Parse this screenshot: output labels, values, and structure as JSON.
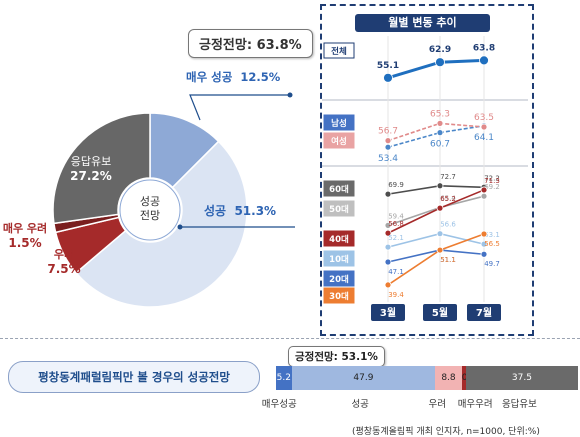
{
  "pie": {
    "type": "pie",
    "center_label": [
      "성공",
      "전망"
    ],
    "callout": "긍정전망: 63.8%",
    "slices": [
      {
        "name": "매우 성공",
        "value": 12.5,
        "display": "12.5%",
        "color": "#8ea9d6",
        "text_color": "#2e64b3"
      },
      {
        "name": "성공",
        "value": 51.3,
        "display": "51.3%",
        "color": "#dbe4f3",
        "text_color": "#2e64b3"
      },
      {
        "name": "우려",
        "value": 7.5,
        "display": "7.5%",
        "color": "#a52a2a",
        "text_color": "#a52a2a"
      },
      {
        "name": "매우 우려",
        "value": 1.5,
        "display": "1.5%",
        "color": "#7a1f1f",
        "text_color": "#a52a2a"
      },
      {
        "name": "응답유보",
        "value": 27.2,
        "display": "27.2%",
        "color": "#676767",
        "text_color": "#ffffff"
      }
    ]
  },
  "chart_data": {
    "type": "line",
    "title": "월별 변동 추이",
    "categories": [
      "3월",
      "5월",
      "7월"
    ],
    "series": [
      {
        "name": "전체",
        "values": [
          55.1,
          62.9,
          63.8
        ],
        "color": "#1f6fbf"
      },
      {
        "name": "남성",
        "values": [
          53.4,
          60.7,
          64.1
        ],
        "color": "#4a86c8"
      },
      {
        "name": "여성",
        "values": [
          56.7,
          65.3,
          63.5
        ],
        "color": "#e08a8a"
      },
      {
        "name": "60대",
        "values": [
          69.9,
          72.7,
          72.2
        ],
        "color": "#4d4d4d"
      },
      {
        "name": "50대",
        "values": [
          59.4,
          65.4,
          69.2
        ],
        "color": "#a6a6a6"
      },
      {
        "name": "40대",
        "values": [
          56.8,
          65.2,
          71.3
        ],
        "color": "#a52a2a"
      },
      {
        "name": "10대",
        "values": [
          52.1,
          56.6,
          53.1
        ],
        "color": "#9dc3e6"
      },
      {
        "name": "20대",
        "values": [
          47.1,
          51.1,
          49.7
        ],
        "color": "#4472c4"
      },
      {
        "name": "30대",
        "values": [
          39.4,
          51.1,
          56.5
        ],
        "color": "#ed7d31"
      }
    ]
  },
  "bottom": {
    "title": "평창동계패럴림픽만 볼 경우의 성공전망",
    "callout": "긍정전망: 53.1%",
    "segments": [
      {
        "name": "매우성공",
        "value": 5.2,
        "color": "#4472c4",
        "text_color": "#ffffff"
      },
      {
        "name": "성공",
        "value": 47.9,
        "color": "#9fb8e0",
        "text_color": "#222222"
      },
      {
        "name": "우려",
        "value": 8.8,
        "color": "#f2b3b3",
        "text_color": "#222222"
      },
      {
        "name": "매우우려",
        "value": 0.6,
        "display": "0.6",
        "color": "#a52a2a",
        "text_color": "#222222"
      },
      {
        "name": "응답유보",
        "value": 37.5,
        "color": "#6a6a6a",
        "text_color": "#ffffff"
      }
    ],
    "footnote": "(평창동계올림픽 개최 인지자, n=1000, 단위:%)"
  }
}
